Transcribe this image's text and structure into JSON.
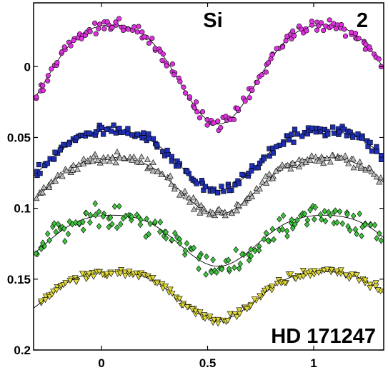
{
  "chart_data": {
    "type": "scatter",
    "annotations": {
      "element": "Si",
      "panel": "2",
      "star": "HD 171247"
    },
    "xlim": [
      -0.32,
      1.33
    ],
    "ylim": [
      0.2,
      -0.045
    ],
    "y_inverted": true,
    "x_ticks": [
      0,
      0.5,
      1
    ],
    "x_tick_labels": [
      "0",
      "0.5",
      "1"
    ],
    "y_ticks": [
      0,
      0.05,
      0.1,
      0.15,
      0.2
    ],
    "y_tick_labels": [
      "0",
      "0.05",
      "0.1",
      "0.15",
      "0.2"
    ],
    "grid": false,
    "legend": "none",
    "series": [
      {
        "marker": "circle",
        "color": "#dd33dd",
        "offset": 0.0,
        "amplitude": 0.035,
        "scatter": 0.0035,
        "phase_peak": 0.05,
        "points_x": [
          -0.31,
          -0.29,
          -0.27,
          -0.25,
          -0.23,
          -0.21,
          -0.19,
          -0.17,
          -0.15,
          -0.13,
          -0.11,
          -0.09,
          -0.07,
          -0.05,
          -0.03,
          -0.01,
          0.01,
          0.03,
          0.05,
          0.07,
          0.09,
          0.11,
          0.13,
          0.15,
          0.17,
          0.19,
          0.21,
          0.23,
          0.25,
          0.27,
          0.29,
          0.31,
          0.33,
          0.35,
          0.37,
          0.39,
          0.41,
          0.43,
          0.45,
          0.47,
          0.49,
          0.51,
          0.53,
          0.55,
          0.57,
          0.59,
          0.61,
          0.63,
          0.65,
          0.67,
          0.69,
          0.71,
          0.73,
          0.75,
          0.77,
          0.79,
          0.81,
          0.83,
          0.85,
          0.87,
          0.89,
          0.91,
          0.93,
          0.95,
          0.97,
          0.99,
          1.01,
          1.03,
          1.05,
          1.07,
          1.09,
          1.11,
          1.13,
          1.15,
          1.17,
          1.19,
          1.21,
          1.23,
          1.25,
          1.27,
          1.29,
          1.31
        ]
      },
      {
        "marker": "square",
        "color": "#1f2fb0",
        "offset": 0.063,
        "amplitude": 0.021,
        "scatter": 0.003,
        "phase_peak": 0.05,
        "points_x": [
          -0.31,
          -0.29,
          -0.27,
          -0.25,
          -0.23,
          -0.21,
          -0.19,
          -0.17,
          -0.15,
          -0.13,
          -0.11,
          -0.09,
          -0.07,
          -0.05,
          -0.03,
          -0.01,
          0.01,
          0.03,
          0.05,
          0.07,
          0.09,
          0.11,
          0.13,
          0.15,
          0.17,
          0.19,
          0.21,
          0.23,
          0.25,
          0.27,
          0.29,
          0.31,
          0.33,
          0.35,
          0.37,
          0.39,
          0.41,
          0.43,
          0.45,
          0.47,
          0.49,
          0.51,
          0.53,
          0.55,
          0.57,
          0.59,
          0.61,
          0.63,
          0.65,
          0.67,
          0.69,
          0.71,
          0.73,
          0.75,
          0.77,
          0.79,
          0.81,
          0.83,
          0.85,
          0.87,
          0.89,
          0.91,
          0.93,
          0.95,
          0.97,
          0.99,
          1.01,
          1.03,
          1.05,
          1.07,
          1.09,
          1.11,
          1.13,
          1.15,
          1.17,
          1.19,
          1.21,
          1.23,
          1.25,
          1.27,
          1.29,
          1.31
        ]
      },
      {
        "marker": "triangle-up",
        "color": "#bbbbbb",
        "offset": 0.081,
        "amplitude": 0.02,
        "scatter": 0.003,
        "phase_peak": 0.05,
        "points_x": [
          -0.31,
          -0.29,
          -0.27,
          -0.25,
          -0.23,
          -0.21,
          -0.19,
          -0.17,
          -0.15,
          -0.13,
          -0.11,
          -0.09,
          -0.07,
          -0.05,
          -0.03,
          -0.01,
          0.01,
          0.03,
          0.05,
          0.07,
          0.09,
          0.11,
          0.13,
          0.15,
          0.17,
          0.19,
          0.21,
          0.23,
          0.25,
          0.27,
          0.29,
          0.31,
          0.33,
          0.35,
          0.37,
          0.39,
          0.41,
          0.43,
          0.45,
          0.47,
          0.49,
          0.51,
          0.53,
          0.55,
          0.57,
          0.59,
          0.61,
          0.63,
          0.65,
          0.67,
          0.69,
          0.71,
          0.73,
          0.75,
          0.77,
          0.79,
          0.81,
          0.83,
          0.85,
          0.87,
          0.89,
          0.91,
          0.93,
          0.95,
          0.97,
          0.99,
          1.01,
          1.03,
          1.05,
          1.07,
          1.09,
          1.11,
          1.13,
          1.15,
          1.17,
          1.19,
          1.21,
          1.23,
          1.25,
          1.27,
          1.29,
          1.31
        ]
      },
      {
        "marker": "diamond",
        "color": "#3ec23e",
        "offset": 0.12,
        "amplitude": 0.018,
        "scatter": 0.007,
        "phase_peak": 0.05,
        "points_x": [
          -0.31,
          -0.29,
          -0.27,
          -0.25,
          -0.23,
          -0.21,
          -0.19,
          -0.17,
          -0.15,
          -0.13,
          -0.11,
          -0.09,
          -0.07,
          -0.05,
          -0.03,
          -0.01,
          0.01,
          0.03,
          0.05,
          0.07,
          0.09,
          0.11,
          0.13,
          0.15,
          0.17,
          0.19,
          0.21,
          0.23,
          0.25,
          0.27,
          0.29,
          0.31,
          0.33,
          0.35,
          0.37,
          0.39,
          0.41,
          0.43,
          0.45,
          0.47,
          0.49,
          0.51,
          0.53,
          0.55,
          0.57,
          0.59,
          0.61,
          0.63,
          0.65,
          0.67,
          0.69,
          0.71,
          0.73,
          0.75,
          0.77,
          0.79,
          0.81,
          0.83,
          0.85,
          0.87,
          0.89,
          0.91,
          0.93,
          0.95,
          0.97,
          0.99,
          1.01,
          1.03,
          1.05,
          1.07,
          1.09,
          1.11,
          1.13,
          1.15,
          1.17,
          1.19,
          1.21,
          1.23,
          1.25,
          1.27,
          1.29,
          1.31
        ]
      },
      {
        "marker": "triangle-down",
        "color": "#e0d93a",
        "offset": 0.159,
        "amplitude": 0.017,
        "scatter": 0.0025,
        "phase_peak": 0.05,
        "points_x": [
          -0.31,
          -0.29,
          -0.27,
          -0.25,
          -0.23,
          -0.21,
          -0.19,
          -0.17,
          -0.15,
          -0.13,
          -0.11,
          -0.09,
          -0.07,
          -0.05,
          -0.03,
          -0.01,
          0.01,
          0.03,
          0.05,
          0.07,
          0.09,
          0.11,
          0.13,
          0.15,
          0.17,
          0.19,
          0.21,
          0.23,
          0.25,
          0.27,
          0.29,
          0.31,
          0.33,
          0.35,
          0.37,
          0.39,
          0.41,
          0.43,
          0.45,
          0.47,
          0.49,
          0.51,
          0.53,
          0.55,
          0.57,
          0.59,
          0.61,
          0.63,
          0.65,
          0.67,
          0.69,
          0.71,
          0.73,
          0.75,
          0.77,
          0.79,
          0.81,
          0.83,
          0.85,
          0.87,
          0.89,
          0.91,
          0.93,
          0.95,
          0.97,
          0.99,
          1.01,
          1.03,
          1.05,
          1.07,
          1.09,
          1.11,
          1.13,
          1.15,
          1.17,
          1.19,
          1.21,
          1.23,
          1.25,
          1.27,
          1.29,
          1.31
        ]
      }
    ]
  }
}
